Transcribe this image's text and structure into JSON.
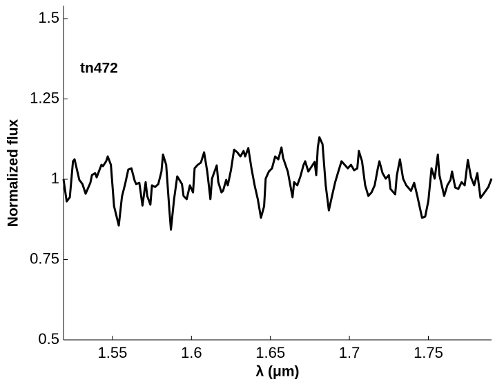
{
  "chart_data": {
    "type": "line",
    "xlabel": "λ (μm)",
    "ylabel": "Normalized flux",
    "annotation": "tn472",
    "xlim": [
      1.519,
      1.79
    ],
    "ylim": [
      0.5,
      1.54
    ],
    "xticks": [
      1.55,
      1.6,
      1.65,
      1.7,
      1.75
    ],
    "yticks": [
      0.5,
      0.75,
      1,
      1.25,
      1.5
    ],
    "grid": false,
    "series": [
      {
        "color": "#000000",
        "x": [
          1.519,
          1.521,
          1.523,
          1.525,
          1.526,
          1.529,
          1.531,
          1.533,
          1.536,
          1.537,
          1.539,
          1.54,
          1.543,
          1.544,
          1.546,
          1.547,
          1.549,
          1.551,
          1.554,
          1.556,
          1.558,
          1.56,
          1.562,
          1.564,
          1.565,
          1.567,
          1.569,
          1.571,
          1.572,
          1.574,
          1.575,
          1.577,
          1.579,
          1.581,
          1.582,
          1.584,
          1.586,
          1.587,
          1.589,
          1.591,
          1.594,
          1.595,
          1.597,
          1.599,
          1.601,
          1.602,
          1.604,
          1.606,
          1.608,
          1.61,
          1.612,
          1.613,
          1.616,
          1.617,
          1.619,
          1.62,
          1.622,
          1.623,
          1.625,
          1.627,
          1.629,
          1.631,
          1.633,
          1.634,
          1.636,
          1.638,
          1.64,
          1.642,
          1.644,
          1.646,
          1.647,
          1.649,
          1.651,
          1.653,
          1.655,
          1.657,
          1.658,
          1.661,
          1.664,
          1.665,
          1.667,
          1.669,
          1.671,
          1.672,
          1.674,
          1.676,
          1.678,
          1.679,
          1.68,
          1.681,
          1.683,
          1.685,
          1.687,
          1.689,
          1.691,
          1.693,
          1.695,
          1.697,
          1.699,
          1.701,
          1.703,
          1.705,
          1.706,
          1.708,
          1.71,
          1.712,
          1.714,
          1.716,
          1.718,
          1.719,
          1.721,
          1.723,
          1.725,
          1.726,
          1.729,
          1.73,
          1.732,
          1.734,
          1.736,
          1.739,
          1.741,
          1.743,
          1.746,
          1.748,
          1.75,
          1.752,
          1.754,
          1.756,
          1.757,
          1.76,
          1.762,
          1.764,
          1.765,
          1.767,
          1.769,
          1.771,
          1.773,
          1.775,
          1.777,
          1.779,
          1.781,
          1.783,
          1.785,
          1.788,
          1.79
        ],
        "values": [
          1.0,
          0.931,
          0.944,
          1.056,
          1.062,
          0.998,
          0.985,
          0.955,
          0.989,
          1.013,
          1.019,
          1.006,
          1.045,
          1.041,
          1.056,
          1.071,
          1.045,
          0.916,
          0.856,
          0.946,
          0.985,
          1.03,
          1.034,
          0.996,
          0.985,
          0.989,
          0.918,
          0.991,
          0.948,
          0.921,
          0.981,
          0.976,
          0.985,
          1.024,
          1.077,
          1.045,
          0.906,
          0.843,
          0.938,
          1.009,
          0.985,
          0.948,
          0.938,
          0.981,
          0.959,
          1.034,
          1.045,
          1.052,
          1.084,
          1.024,
          0.938,
          1.002,
          1.043,
          0.991,
          0.959,
          0.964,
          0.998,
          0.981,
          1.028,
          1.092,
          1.084,
          1.071,
          1.088,
          1.071,
          1.097,
          1.034,
          0.981,
          0.938,
          0.88,
          0.916,
          1.002,
          1.024,
          1.034,
          1.071,
          1.062,
          1.099,
          1.067,
          1.024,
          0.944,
          0.991,
          0.981,
          1.009,
          1.045,
          1.056,
          1.024,
          1.039,
          1.054,
          1.013,
          1.099,
          1.131,
          1.109,
          0.981,
          0.903,
          0.948,
          0.991,
          1.024,
          1.056,
          1.045,
          1.034,
          1.045,
          1.028,
          1.034,
          1.088,
          1.056,
          0.981,
          0.948,
          0.959,
          0.981,
          1.034,
          1.056,
          1.019,
          1.002,
          1.013,
          0.97,
          0.953,
          1.011,
          1.062,
          1.002,
          0.981,
          0.964,
          0.989,
          0.948,
          0.88,
          0.884,
          0.933,
          1.034,
          1.002,
          1.077,
          1.013,
          0.948,
          0.981,
          0.998,
          1.024,
          0.974,
          0.97,
          0.991,
          0.981,
          1.06,
          1.006,
          0.981,
          1.019,
          0.942,
          0.955,
          0.976,
          1.002
        ]
      }
    ]
  }
}
